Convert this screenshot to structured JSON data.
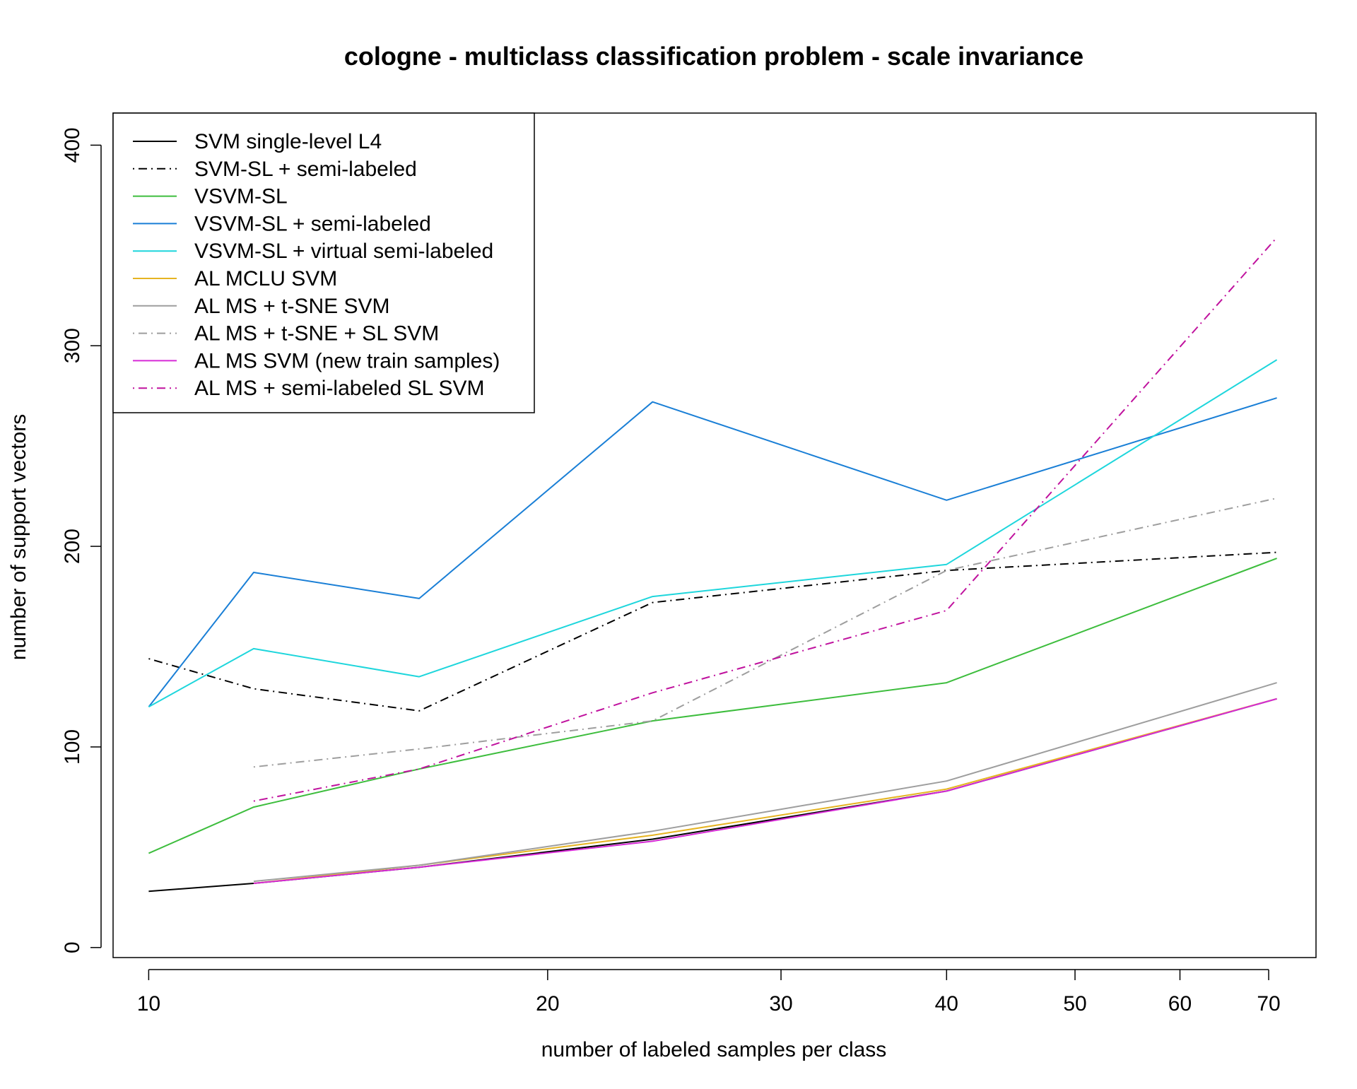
{
  "chart_data": {
    "type": "line",
    "title": "cologne - multiclass classification problem - scale invariance",
    "xlabel": "number of labeled samples per class",
    "ylabel": "number of support vectors",
    "x_scale": "log",
    "xlim": [
      9.4,
      76
    ],
    "ylim": [
      -5,
      416
    ],
    "x_ticks": [
      10,
      20,
      30,
      40,
      50,
      60,
      70
    ],
    "y_ticks": [
      0,
      100,
      200,
      300,
      400
    ],
    "legend_position": "top-left",
    "grid": false,
    "series": [
      {
        "name": "SVM single-level L4",
        "color": "#000000",
        "dash": "solid",
        "x": [
          10,
          12,
          16,
          24,
          40,
          71
        ],
        "y": [
          28,
          32,
          40,
          54,
          78,
          124
        ]
      },
      {
        "name": "SVM-SL + semi-labeled",
        "color": "#000000",
        "dash": "dotdash",
        "x": [
          10,
          12,
          16,
          24,
          40,
          71
        ],
        "y": [
          144,
          129,
          118,
          172,
          188,
          197
        ]
      },
      {
        "name": "VSVM-SL",
        "color": "#3dbd3d",
        "dash": "solid",
        "x": [
          10,
          12,
          16,
          24,
          40,
          71
        ],
        "y": [
          47,
          70,
          89,
          113,
          132,
          194
        ]
      },
      {
        "name": "VSVM-SL + semi-labeled",
        "color": "#1a7fd6",
        "dash": "solid",
        "x": [
          10,
          12,
          16,
          24,
          40,
          71
        ],
        "y": [
          120,
          187,
          174,
          272,
          223,
          274
        ]
      },
      {
        "name": "VSVM-SL + virtual semi-labeled",
        "color": "#1ed6dc",
        "dash": "solid",
        "x": [
          10,
          12,
          16,
          24,
          40,
          71
        ],
        "y": [
          120,
          149,
          135,
          175,
          191,
          293
        ]
      },
      {
        "name": "AL MCLU SVM",
        "color": "#e6b422",
        "dash": "solid",
        "x": [
          12,
          16,
          24,
          40,
          71
        ],
        "y": [
          32,
          41,
          56,
          79,
          124
        ]
      },
      {
        "name": "AL MS + t-SNE SVM",
        "color": "#9e9e9e",
        "dash": "solid",
        "x": [
          12,
          16,
          24,
          40,
          71
        ],
        "y": [
          33,
          41,
          58,
          83,
          132
        ]
      },
      {
        "name": "AL MS + t-SNE + SL SVM",
        "color": "#9e9e9e",
        "dash": "dotdash",
        "x": [
          12,
          16,
          24,
          40,
          71
        ],
        "y": [
          90,
          99,
          113,
          188,
          224
        ]
      },
      {
        "name": "AL MS SVM (new train samples)",
        "color": "#d62ad6",
        "dash": "solid",
        "x": [
          12,
          16,
          24,
          40,
          71
        ],
        "y": [
          32,
          40,
          53,
          78,
          124
        ]
      },
      {
        "name": "AL MS + semi-labeled SL SVM",
        "color": "#c0129e",
        "dash": "dotdash",
        "x": [
          12,
          16,
          24,
          40,
          71
        ],
        "y": [
          73,
          89,
          127,
          168,
          354
        ]
      }
    ]
  }
}
